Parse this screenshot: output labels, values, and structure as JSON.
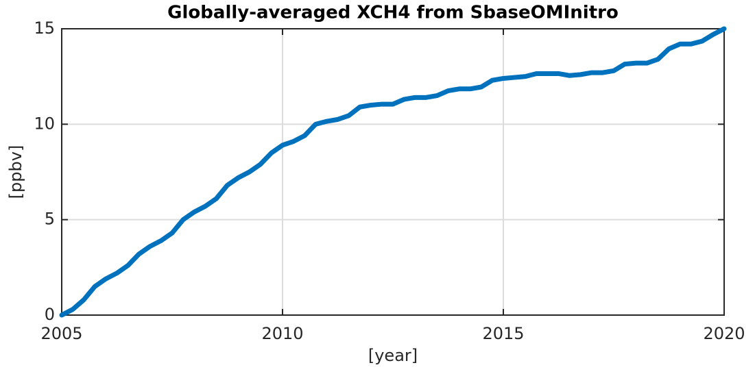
{
  "chart_data": {
    "type": "line",
    "title": "Globally-averaged XCH4 from SbaseOMInitro",
    "x_label": "[year]",
    "y_label": "[ppbv]",
    "x": [
      2005,
      2005.25,
      2005.5,
      2005.75,
      2006,
      2006.25,
      2006.5,
      2006.75,
      2007,
      2007.25,
      2007.5,
      2007.75,
      2008,
      2008.25,
      2008.5,
      2008.75,
      2009,
      2009.25,
      2009.5,
      2009.75,
      2010,
      2010.25,
      2010.5,
      2010.75,
      2011,
      2011.25,
      2011.5,
      2011.75,
      2012,
      2012.25,
      2012.5,
      2012.75,
      2013,
      2013.25,
      2013.5,
      2013.75,
      2014,
      2014.25,
      2014.5,
      2014.75,
      2015,
      2015.25,
      2015.5,
      2015.75,
      2016,
      2016.25,
      2016.5,
      2016.75,
      2017,
      2017.25,
      2017.5,
      2017.75,
      2018,
      2018.25,
      2018.5,
      2018.75,
      2019,
      2019.25,
      2019.5,
      2019.75,
      2020
    ],
    "series": [
      {
        "color": "#0072bd",
        "values": [
          0,
          0.3,
          0.8,
          1.5,
          1.9,
          2.2,
          2.6,
          3.2,
          3.6,
          3.9,
          4.3,
          5.0,
          5.4,
          5.7,
          6.1,
          6.8,
          7.2,
          7.5,
          7.9,
          8.5,
          8.9,
          9.1,
          9.4,
          10.0,
          10.15,
          10.25,
          10.45,
          10.9,
          11.0,
          11.05,
          11.05,
          11.3,
          11.4,
          11.4,
          11.5,
          11.75,
          11.85,
          11.85,
          11.95,
          12.3,
          12.4,
          12.45,
          12.5,
          12.65,
          12.65,
          12.65,
          12.55,
          12.6,
          12.7,
          12.7,
          12.8,
          13.15,
          13.2,
          13.2,
          13.4,
          13.95,
          14.2,
          14.2,
          14.35,
          14.7,
          15.0
        ]
      }
    ],
    "xlim": [
      2005,
      2020
    ],
    "ylim": [
      0,
      15
    ],
    "xticks": [
      2005,
      2010,
      2015,
      2020
    ],
    "yticks": [
      0,
      5,
      10,
      15
    ],
    "grid": true
  }
}
